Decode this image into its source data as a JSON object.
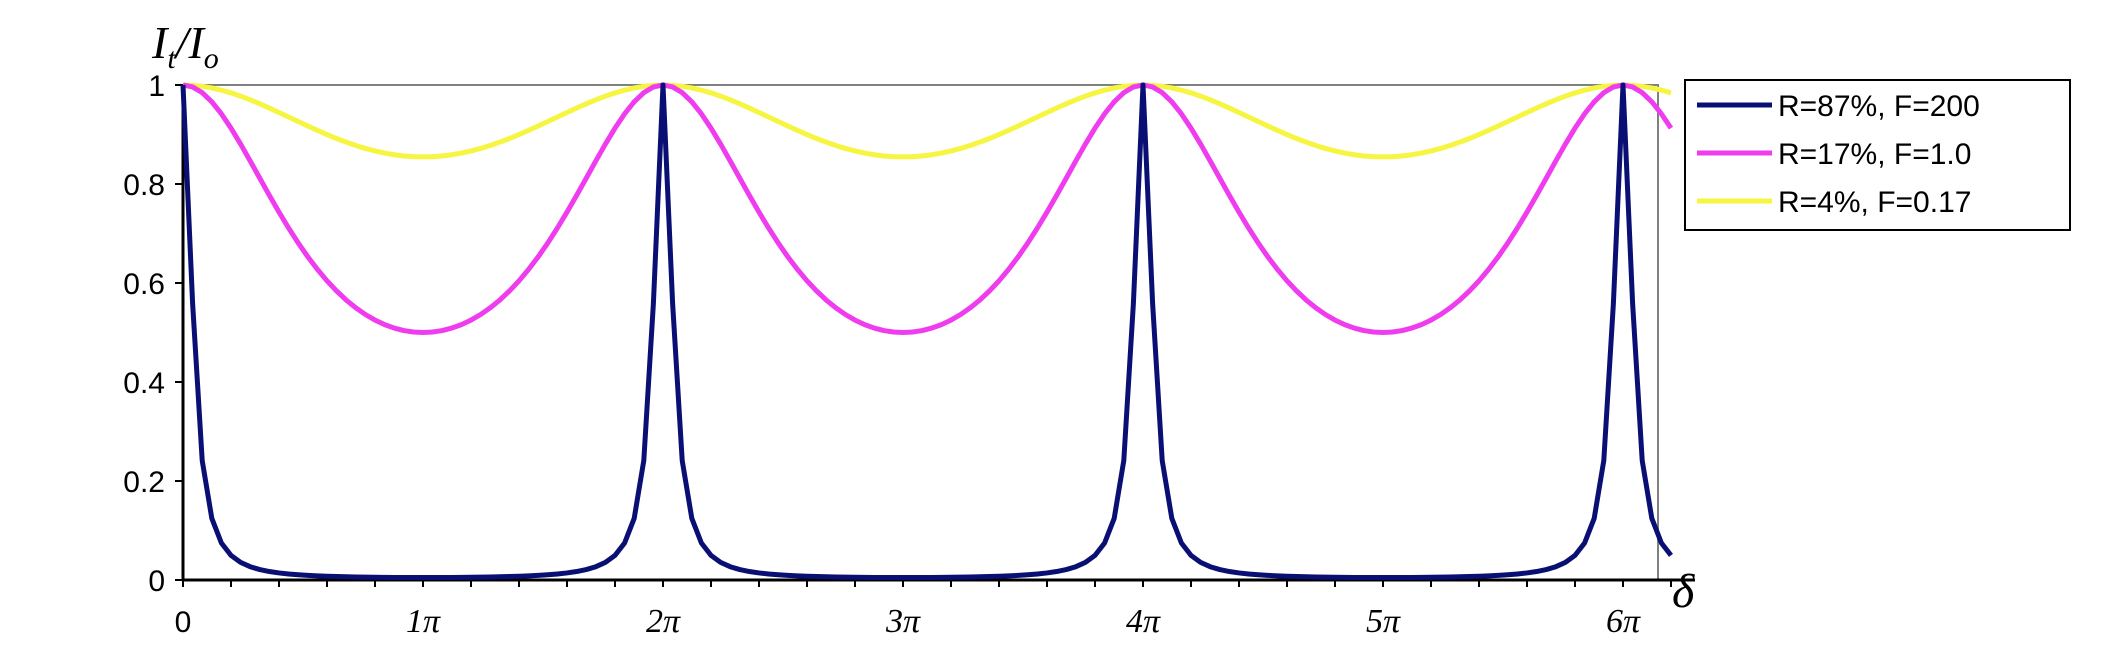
{
  "chart_data": {
    "type": "line",
    "ylabel": {
      "main_1": "I",
      "sub_1": "t",
      "slash": "/",
      "main_2": "I",
      "sub_2": "o"
    },
    "xlabel": "δ",
    "ylim": [
      0,
      1
    ],
    "yticks": [
      "0",
      "0.2",
      "0.4",
      "0.6",
      "0.8",
      "1"
    ],
    "xlim_pi": [
      0,
      6.3
    ],
    "xticks": [
      {
        "at_pi": 0,
        "label": "0"
      },
      {
        "at_pi": 1,
        "label": "1π"
      },
      {
        "at_pi": 2,
        "label": "2π"
      },
      {
        "at_pi": 3,
        "label": "3π"
      },
      {
        "at_pi": 4,
        "label": "4π"
      },
      {
        "at_pi": 5,
        "label": "5π"
      },
      {
        "at_pi": 6,
        "label": "6π"
      }
    ],
    "function": "I_t/I_o = 1 / (1 + F·sin²(δ/2))",
    "x_range_pi": [
      0,
      6.2
    ],
    "x_step_pi": 0.04,
    "series": [
      {
        "name": "R=87%, F=200",
        "F": 200,
        "color": "#0a0f73"
      },
      {
        "name": "R=17%, F=1.0",
        "F": 1.0,
        "color": "#ee3cee"
      },
      {
        "name": "R=4%, F=0.17",
        "F": 0.17,
        "color": "#f5f542"
      }
    ],
    "legend_position": "right"
  }
}
